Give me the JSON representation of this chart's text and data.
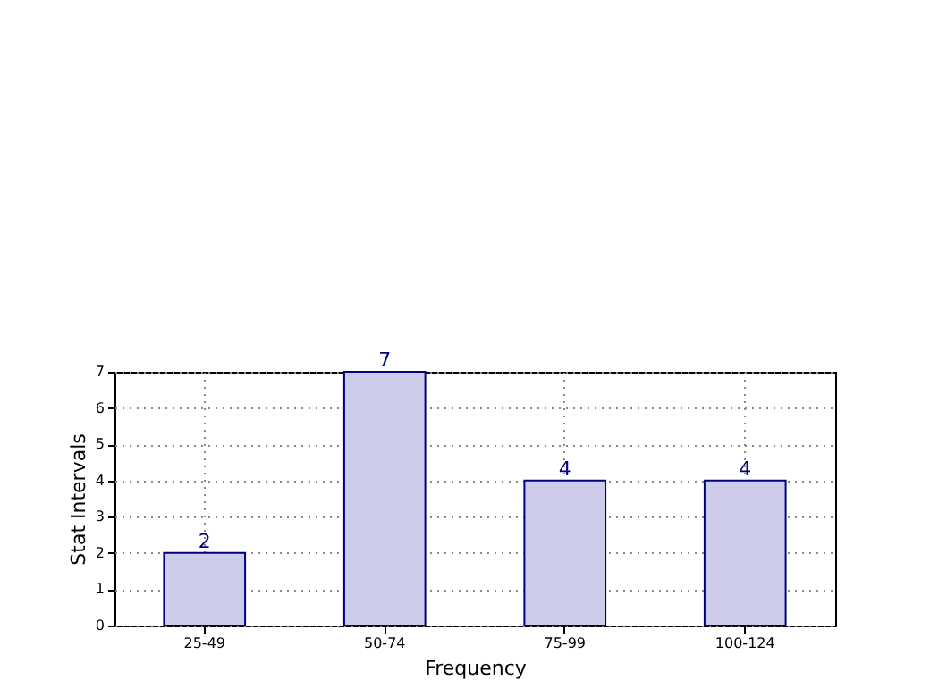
{
  "chart_data": {
    "type": "bar",
    "xlabel": "Frequency",
    "ylabel": "Stat Intervals",
    "categories": [
      "25-49",
      "50-74",
      "75-99",
      "100-124"
    ],
    "values": [
      2,
      7,
      4,
      4
    ],
    "color": "#ccccea",
    "ylim": [
      0,
      7
    ],
    "yticks": [
      0,
      1,
      2,
      3,
      4,
      5,
      6,
      7
    ],
    "grid": true,
    "data_labels": true
  }
}
